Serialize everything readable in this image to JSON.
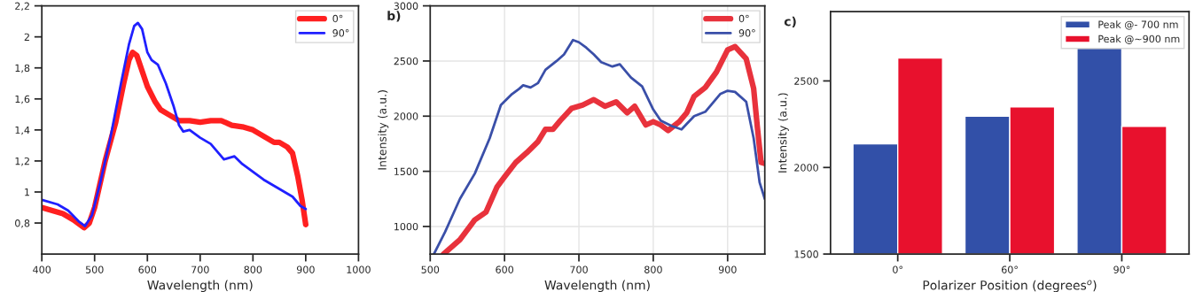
{
  "chart_data": [
    {
      "type": "line",
      "xlabel": "Wavelength (nm)",
      "xlim": [
        400,
        1000
      ],
      "xticks": [
        400,
        500,
        600,
        700,
        800,
        900,
        1000
      ],
      "ylim": [
        0.6,
        2.2
      ],
      "yticks": [
        {
          "value": 0.8,
          "label": "0,8"
        },
        {
          "value": 1,
          "label": "1"
        },
        {
          "value": 1.2,
          "label": "1,2"
        },
        {
          "value": 1.4,
          "label": "1,4"
        },
        {
          "value": 1.6,
          "label": "1,6"
        },
        {
          "value": 1.8,
          "label": "1,8"
        },
        {
          "value": 2,
          "label": "2"
        },
        {
          "value": 2.2,
          "label": "2,2"
        }
      ],
      "grid": false,
      "legend": "top right",
      "series": [
        {
          "name": "0°",
          "color": "#ff2020",
          "x": [
            400,
            440,
            460,
            480,
            490,
            500,
            520,
            540,
            555,
            565,
            572,
            580,
            590,
            600,
            615,
            625,
            640,
            660,
            680,
            700,
            720,
            740,
            760,
            780,
            800,
            820,
            840,
            850,
            865,
            875,
            885,
            893,
            900
          ],
          "values": [
            0.9,
            0.86,
            0.82,
            0.77,
            0.8,
            0.9,
            1.2,
            1.45,
            1.7,
            1.85,
            1.9,
            1.88,
            1.78,
            1.68,
            1.58,
            1.53,
            1.5,
            1.46,
            1.46,
            1.45,
            1.46,
            1.46,
            1.43,
            1.42,
            1.4,
            1.36,
            1.32,
            1.32,
            1.29,
            1.25,
            1.1,
            0.95,
            0.79
          ]
        },
        {
          "name": "90°",
          "color": "#2020ff",
          "x": [
            400,
            430,
            450,
            470,
            482,
            495,
            510,
            530,
            550,
            565,
            575,
            582,
            590,
            600,
            608,
            620,
            635,
            650,
            660,
            668,
            680,
            700,
            720,
            735,
            745,
            755,
            765,
            780,
            800,
            820,
            840,
            860,
            875,
            890,
            900
          ],
          "values": [
            0.95,
            0.92,
            0.88,
            0.81,
            0.78,
            0.85,
            1.05,
            1.35,
            1.7,
            1.95,
            2.07,
            2.09,
            2.05,
            1.9,
            1.85,
            1.82,
            1.7,
            1.55,
            1.43,
            1.39,
            1.4,
            1.35,
            1.31,
            1.25,
            1.21,
            1.22,
            1.23,
            1.18,
            1.13,
            1.08,
            1.04,
            1.0,
            0.97,
            0.91,
            0.89
          ]
        }
      ]
    },
    {
      "type": "line",
      "title": "b)",
      "xlabel": "Wavelength (nm)",
      "ylabel": "Intensity (a.u.)",
      "xlim": [
        500,
        950
      ],
      "xticks": [
        500,
        600,
        700,
        800,
        900
      ],
      "ylim": [
        750,
        3000
      ],
      "yticks": [
        1000,
        1500,
        2000,
        2500,
        3000
      ],
      "grid": true,
      "legend": "top right",
      "series": [
        {
          "name": "0°",
          "color": "#e8323c",
          "x": [
            518,
            540,
            560,
            575,
            590,
            600,
            615,
            630,
            645,
            655,
            665,
            675,
            690,
            705,
            720,
            735,
            750,
            765,
            775,
            790,
            800,
            810,
            820,
            835,
            845,
            855,
            870,
            885,
            900,
            910,
            925,
            935,
            940,
            945,
            950
          ],
          "values": [
            750,
            880,
            1060,
            1130,
            1360,
            1450,
            1580,
            1670,
            1770,
            1880,
            1880,
            1960,
            2070,
            2100,
            2150,
            2090,
            2130,
            2030,
            2090,
            1920,
            1950,
            1920,
            1870,
            1950,
            2030,
            2180,
            2260,
            2400,
            2600,
            2630,
            2520,
            2250,
            1900,
            1580,
            1570
          ]
        },
        {
          "name": "90°",
          "color": "#3a4fa8",
          "x": [
            505,
            520,
            540,
            560,
            580,
            595,
            610,
            620,
            625,
            635,
            645,
            655,
            670,
            680,
            692,
            700,
            710,
            720,
            730,
            745,
            755,
            770,
            785,
            800,
            810,
            825,
            838,
            845,
            855,
            870,
            880,
            890,
            900,
            910,
            925,
            935,
            943,
            950
          ],
          "values": [
            750,
            950,
            1250,
            1480,
            1800,
            2100,
            2200,
            2250,
            2280,
            2260,
            2300,
            2420,
            2500,
            2560,
            2690,
            2670,
            2620,
            2560,
            2490,
            2450,
            2470,
            2350,
            2270,
            2060,
            1960,
            1910,
            1880,
            1930,
            2000,
            2040,
            2120,
            2200,
            2230,
            2220,
            2130,
            1800,
            1400,
            1250
          ]
        }
      ]
    },
    {
      "type": "bar",
      "title": "c)",
      "xlabel": "Polarizer Position (degrees$^{o}$)",
      "ylabel": "Intensity (a.u.)",
      "categories": [
        "0°",
        "60°",
        "90°"
      ],
      "ylim": [
        1500,
        2900
      ],
      "yticks": [
        1500,
        2000,
        2500
      ],
      "grid": false,
      "legend": "top right",
      "series": [
        {
          "name": "Peak @- 700 nm",
          "color": "#3250a8",
          "values": [
            2137,
            2296,
            2688
          ]
        },
        {
          "name": "Peak @~900 nm",
          "color": "#e8112d",
          "values": [
            2632,
            2350,
            2237
          ]
        }
      ]
    }
  ]
}
